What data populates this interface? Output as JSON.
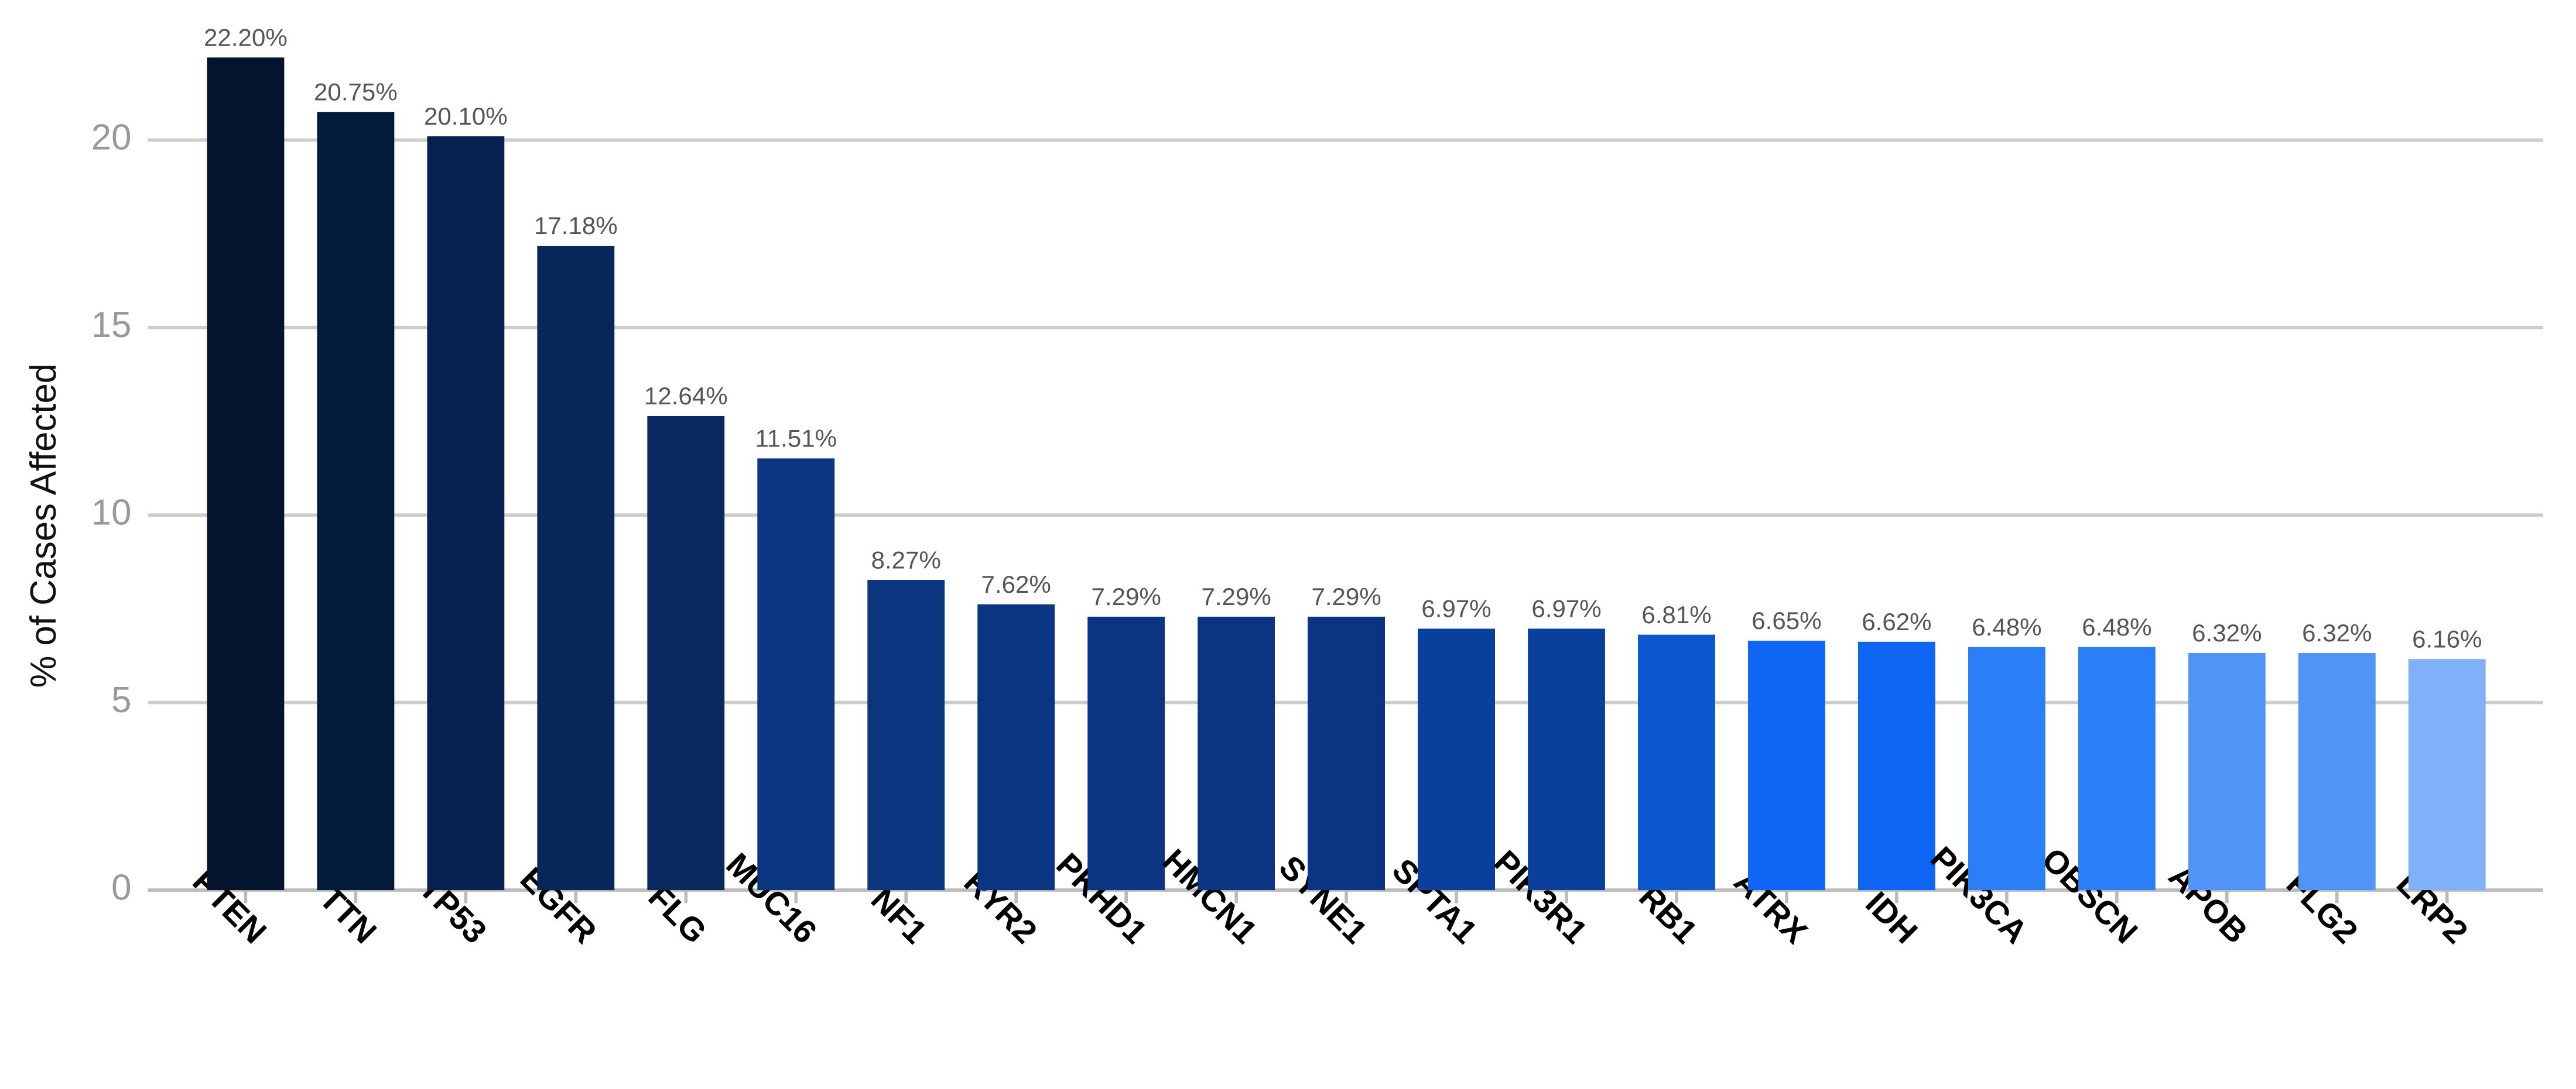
{
  "chart_data": {
    "type": "bar",
    "y_label": "% of Cases Affected",
    "categories": [
      "PTEN",
      "TTN",
      "TP53",
      "EGFR",
      "FLG",
      "MUC16",
      "NF1",
      "RYR2",
      "PKHD1",
      "HMCN1",
      "SYNE1",
      "SPTA1",
      "PIK3R1",
      "RB1",
      "ATRX",
      "IDH",
      "PIK3CA",
      "OBSCN",
      "APOB",
      "FLG2",
      "LRP2"
    ],
    "values": [
      22.2,
      20.75,
      20.1,
      17.18,
      12.64,
      11.51,
      8.27,
      7.62,
      7.29,
      7.29,
      7.29,
      6.97,
      6.97,
      6.81,
      6.65,
      6.62,
      6.48,
      6.48,
      6.32,
      6.32,
      6.16
    ],
    "value_labels": [
      "22.20%",
      "20.75%",
      "20.10%",
      "17.18%",
      "12.64%",
      "11.51%",
      "8.27%",
      "7.62%",
      "7.29%",
      "7.29%",
      "7.29%",
      "6.97%",
      "6.97%",
      "6.81%",
      "6.65%",
      "6.62%",
      "6.48%",
      "6.48%",
      "6.32%",
      "6.32%",
      "6.16%"
    ],
    "colors": [
      "#04142e",
      "#041a3a",
      "#06214f",
      "#072659",
      "#08285e",
      "#0a3580",
      "#0b357f",
      "#0b3583",
      "#0b3583",
      "#0b3583",
      "#0b3583",
      "#0a3f9e",
      "#0a3f9e",
      "#0a57d0",
      "#0f66f5",
      "#0f66f5",
      "#2a7ff7",
      "#2a7ff7",
      "#5094f7",
      "#5094f7",
      "#7fb0f8"
    ],
    "ylim": [
      0,
      22.5
    ],
    "yticks": [
      0,
      5,
      10,
      15,
      20
    ],
    "grid": true
  }
}
